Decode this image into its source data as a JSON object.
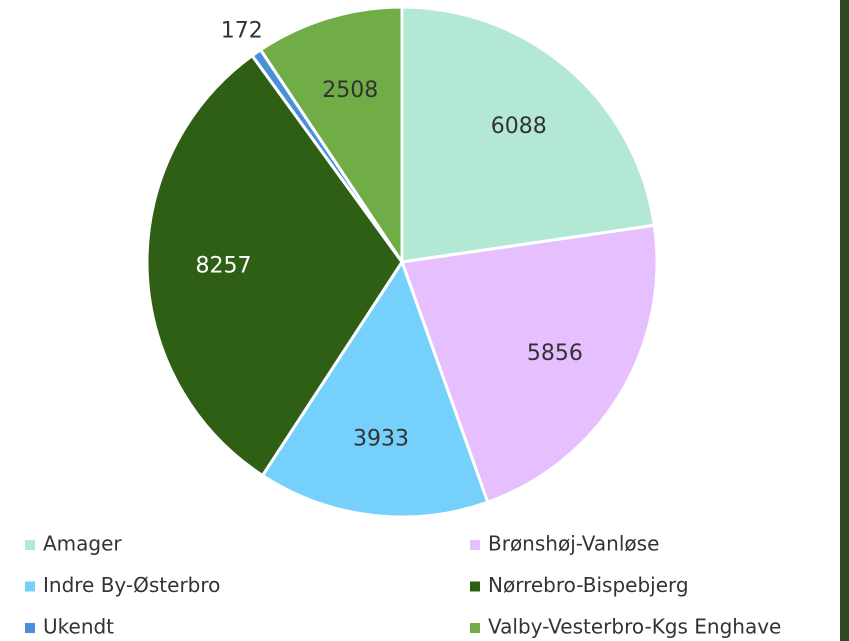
{
  "chart_data": {
    "type": "pie",
    "categories": [
      "Amager",
      "Brønshøj-Vanløse",
      "Indre By-Østerbro",
      "Nørrebro-Bispebjerg",
      "Ukendt",
      "Valby-Vesterbro-Kgs Enghave"
    ],
    "values": [
      6088,
      5856,
      3933,
      8257,
      172,
      2508
    ],
    "colors": [
      "#b3e9d4",
      "#e6bfff",
      "#75d0fc",
      "#2f5f14",
      "#4a90d9",
      "#70ad47"
    ],
    "legend": "bottom"
  }
}
